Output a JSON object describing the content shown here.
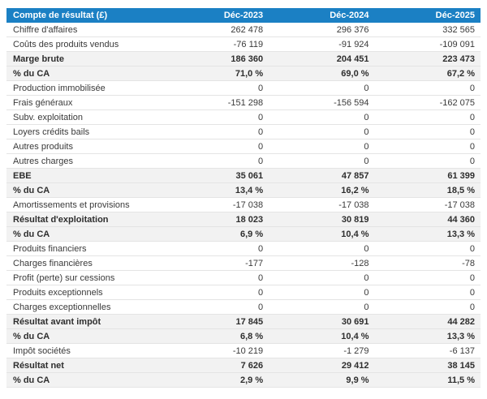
{
  "colors": {
    "header_bg": "#1b80c4",
    "header_text": "#ffffff",
    "subtotal_row_bg": "#f2f2f2",
    "row_border": "#e4e4e4",
    "text": "#3a3a3a"
  },
  "table": {
    "header": {
      "label": "Compte de résultat (£)",
      "columns": [
        "Déc-2023",
        "Déc-2024",
        "Déc-2025"
      ]
    },
    "rows": [
      {
        "label": "Chiffre d'affaires",
        "values": [
          "262 478",
          "296 376",
          "332 565"
        ],
        "bold": false
      },
      {
        "label": "Coûts des produits vendus",
        "values": [
          "-76 119",
          "-91 924",
          "-109 091"
        ],
        "bold": false
      },
      {
        "label": "Marge brute",
        "values": [
          "186 360",
          "204 451",
          "223 473"
        ],
        "bold": true
      },
      {
        "label": "% du CA",
        "values": [
          "71,0 %",
          "69,0 %",
          "67,2 %"
        ],
        "bold": true
      },
      {
        "label": "Production immobilisée",
        "values": [
          "0",
          "0",
          "0"
        ],
        "bold": false
      },
      {
        "label": "Frais généraux",
        "values": [
          "-151 298",
          "-156 594",
          "-162 075"
        ],
        "bold": false
      },
      {
        "label": "Subv. exploitation",
        "values": [
          "0",
          "0",
          "0"
        ],
        "bold": false
      },
      {
        "label": "Loyers crédits bails",
        "values": [
          "0",
          "0",
          "0"
        ],
        "bold": false
      },
      {
        "label": "Autres produits",
        "values": [
          "0",
          "0",
          "0"
        ],
        "bold": false
      },
      {
        "label": "Autres charges",
        "values": [
          "0",
          "0",
          "0"
        ],
        "bold": false
      },
      {
        "label": "EBE",
        "values": [
          "35 061",
          "47 857",
          "61 399"
        ],
        "bold": true
      },
      {
        "label": "% du CA",
        "values": [
          "13,4 %",
          "16,2 %",
          "18,5 %"
        ],
        "bold": true
      },
      {
        "label": "Amortissements et provisions",
        "values": [
          "-17 038",
          "-17 038",
          "-17 038"
        ],
        "bold": false
      },
      {
        "label": "Résultat d'exploitation",
        "values": [
          "18 023",
          "30 819",
          "44 360"
        ],
        "bold": true
      },
      {
        "label": "% du CA",
        "values": [
          "6,9 %",
          "10,4 %",
          "13,3 %"
        ],
        "bold": true
      },
      {
        "label": "Produits financiers",
        "values": [
          "0",
          "0",
          "0"
        ],
        "bold": false
      },
      {
        "label": "Charges financières",
        "values": [
          "-177",
          "-128",
          "-78"
        ],
        "bold": false
      },
      {
        "label": "Profit (perte) sur cessions",
        "values": [
          "0",
          "0",
          "0"
        ],
        "bold": false
      },
      {
        "label": "Produits exceptionnels",
        "values": [
          "0",
          "0",
          "0"
        ],
        "bold": false
      },
      {
        "label": "Charges exceptionnelles",
        "values": [
          "0",
          "0",
          "0"
        ],
        "bold": false
      },
      {
        "label": "Résultat avant impôt",
        "values": [
          "17 845",
          "30 691",
          "44 282"
        ],
        "bold": true
      },
      {
        "label": "% du CA",
        "values": [
          "6,8 %",
          "10,4 %",
          "13,3 %"
        ],
        "bold": true
      },
      {
        "label": "Impôt sociétés",
        "values": [
          "-10 219",
          "-1 279",
          "-6 137"
        ],
        "bold": false
      },
      {
        "label": "Résultat net",
        "values": [
          "7 626",
          "29 412",
          "38 145"
        ],
        "bold": true
      },
      {
        "label": "% du CA",
        "values": [
          "2,9 %",
          "9,9 %",
          "11,5 %"
        ],
        "bold": true
      }
    ]
  }
}
